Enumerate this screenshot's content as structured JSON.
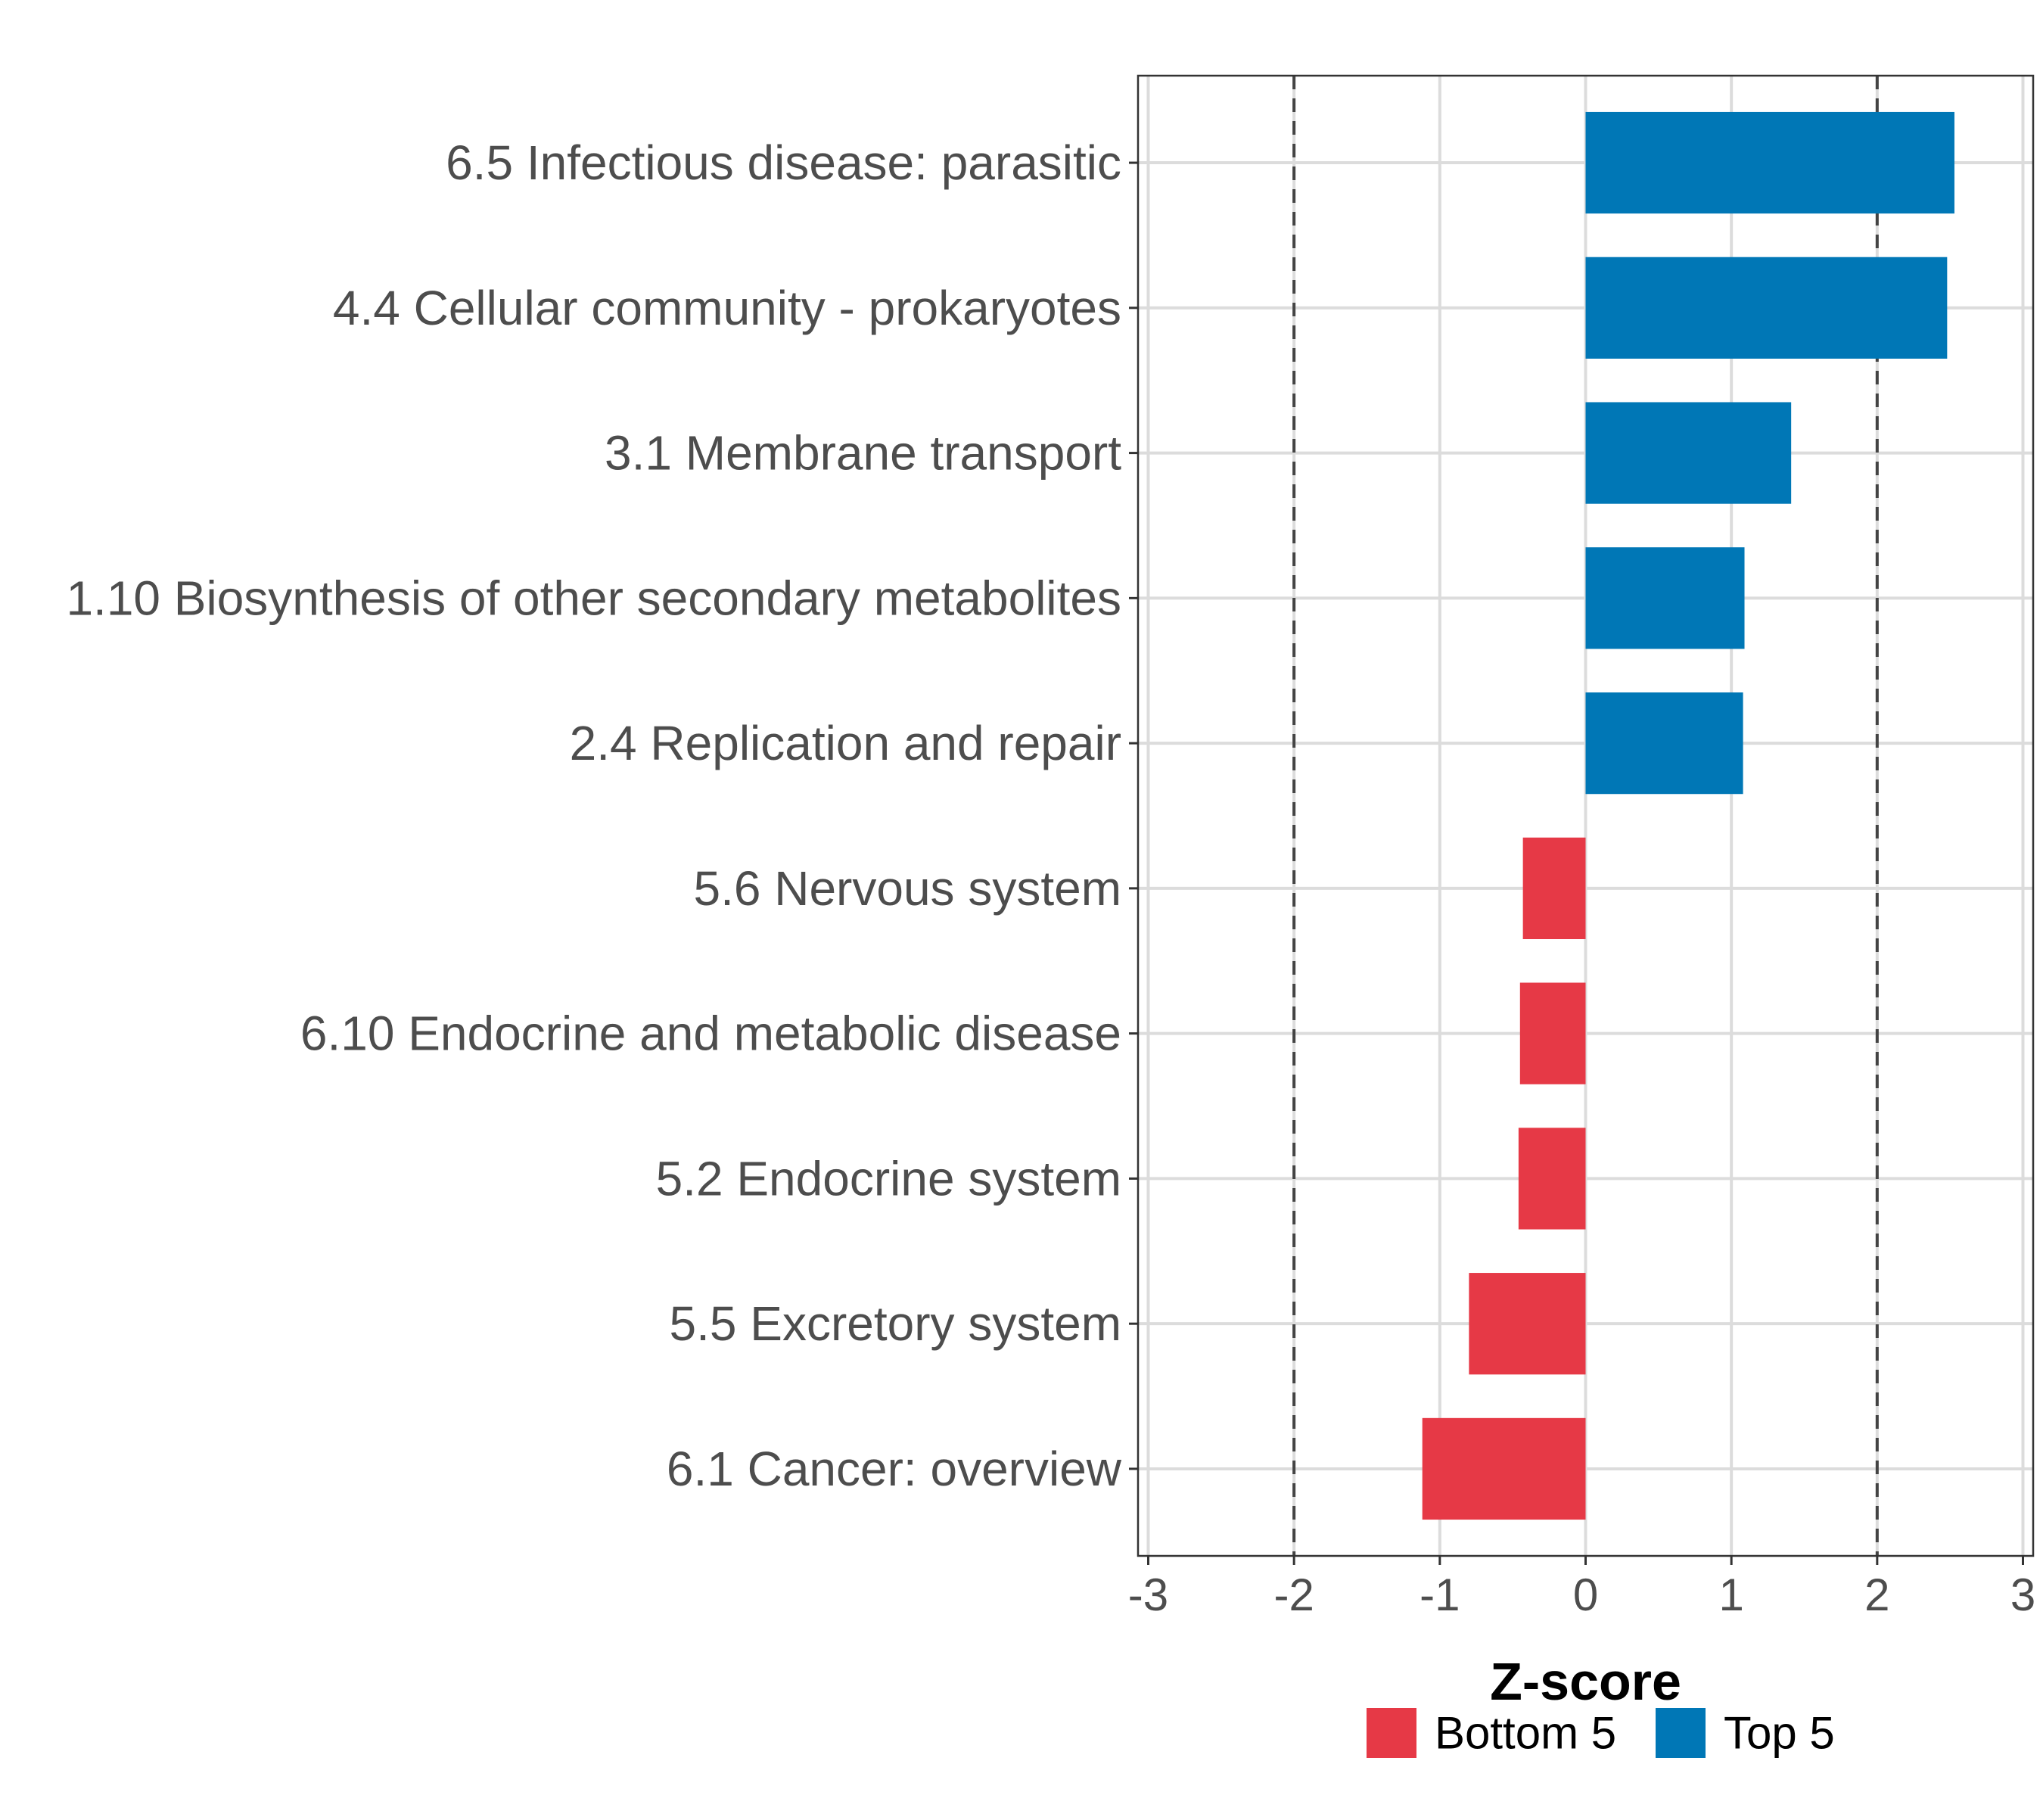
{
  "chart_data": {
    "type": "bar",
    "orientation": "horizontal",
    "categories": [
      "6.5 Infectious disease: parasitic",
      "4.4 Cellular community - prokaryotes",
      "3.1 Membrane transport",
      "1.10 Biosynthesis of other secondary metabolites",
      "2.4 Replication and repair",
      "5.6 Nervous system",
      "6.10 Endocrine and metabolic disease",
      "5.2 Endocrine system",
      "5.5 Excretory system",
      "6.1 Cancer: overview"
    ],
    "values": [
      2.53,
      2.48,
      1.41,
      1.09,
      1.08,
      -0.43,
      -0.45,
      -0.46,
      -0.8,
      -1.12
    ],
    "groups": [
      "Top 5",
      "Top 5",
      "Top 5",
      "Top 5",
      "Top 5",
      "Bottom 5",
      "Bottom 5",
      "Bottom 5",
      "Bottom 5",
      "Bottom 5"
    ],
    "xlabel": "Z-score",
    "ylabel": "",
    "xlim": [
      -3.07,
      3.07
    ],
    "xticks": [
      -3,
      -2,
      -1,
      0,
      1,
      2,
      3
    ],
    "xtick_labels": [
      "-3",
      "-2",
      "-1",
      "0",
      "1",
      "2",
      "3"
    ],
    "reference_lines": [
      -2,
      2
    ],
    "grid": true,
    "legend": {
      "position": "bottom",
      "entries": [
        {
          "label": "Bottom 5",
          "color": "#e63946"
        },
        {
          "label": "Top 5",
          "color": "#0077b6"
        }
      ]
    },
    "colors": {
      "Top 5": "#0077b6",
      "Bottom 5": "#e63946"
    }
  }
}
